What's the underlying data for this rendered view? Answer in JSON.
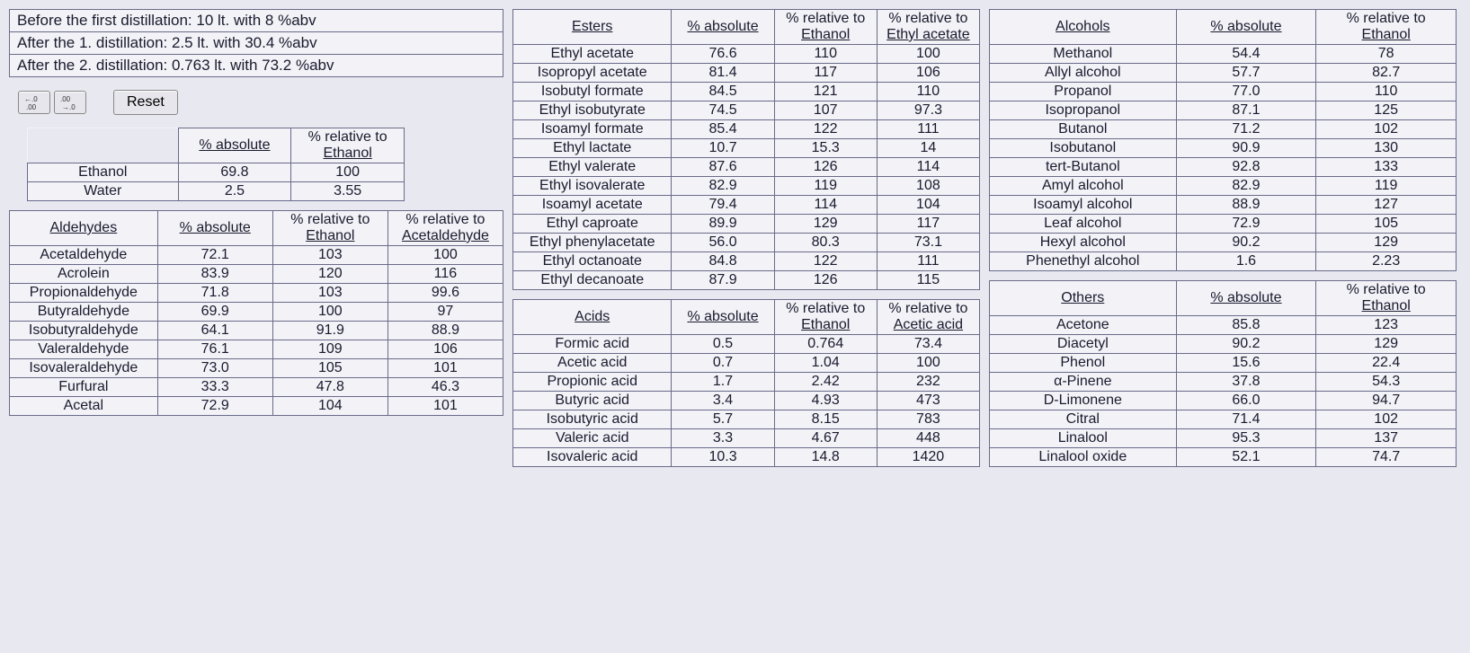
{
  "info": {
    "line1": "Before the first distillation: 10 lt. with 8 %abv",
    "line2": "After the 1. distillation: 2.5 lt. with 30.4 %abv",
    "line3": "After the 2. distillation: 0.763 lt. with 73.2 %abv"
  },
  "toolbar": {
    "reset": "Reset"
  },
  "headers": {
    "absolute": "% absolute",
    "rel_ethanol_l1": "% relative to",
    "rel_ethanol_l2": "Ethanol",
    "rel_acet_l2": "Acetaldehyde",
    "rel_ea_l2": "Ethyl acetate",
    "rel_aa_l2": "Acetic acid",
    "aldehydes": "Aldehydes",
    "esters": "Esters",
    "acids": "Acids",
    "alcohols": "Alcohols",
    "others": "Others"
  },
  "base": {
    "rows": [
      {
        "name": "Ethanol",
        "abs": "69.8",
        "rel": "100"
      },
      {
        "name": "Water",
        "abs": "2.5",
        "rel": "3.55"
      }
    ]
  },
  "aldehydes": {
    "rows": [
      {
        "name": "Acetaldehyde",
        "abs": "72.1",
        "rel1": "103",
        "rel2": "100"
      },
      {
        "name": "Acrolein",
        "abs": "83.9",
        "rel1": "120",
        "rel2": "116"
      },
      {
        "name": "Propionaldehyde",
        "abs": "71.8",
        "rel1": "103",
        "rel2": "99.6"
      },
      {
        "name": "Butyraldehyde",
        "abs": "69.9",
        "rel1": "100",
        "rel2": "97"
      },
      {
        "name": "Isobutyraldehyde",
        "abs": "64.1",
        "rel1": "91.9",
        "rel2": "88.9"
      },
      {
        "name": "Valeraldehyde",
        "abs": "76.1",
        "rel1": "109",
        "rel2": "106"
      },
      {
        "name": "Isovaleraldehyde",
        "abs": "73.0",
        "rel1": "105",
        "rel2": "101"
      },
      {
        "name": "Furfural",
        "abs": "33.3",
        "rel1": "47.8",
        "rel2": "46.3"
      },
      {
        "name": "Acetal",
        "abs": "72.9",
        "rel1": "104",
        "rel2": "101"
      }
    ]
  },
  "esters": {
    "rows": [
      {
        "name": "Ethyl acetate",
        "abs": "76.6",
        "rel1": "110",
        "rel2": "100"
      },
      {
        "name": "Isopropyl acetate",
        "abs": "81.4",
        "rel1": "117",
        "rel2": "106"
      },
      {
        "name": "Isobutyl formate",
        "abs": "84.5",
        "rel1": "121",
        "rel2": "110"
      },
      {
        "name": "Ethyl isobutyrate",
        "abs": "74.5",
        "rel1": "107",
        "rel2": "97.3"
      },
      {
        "name": "Isoamyl formate",
        "abs": "85.4",
        "rel1": "122",
        "rel2": "111"
      },
      {
        "name": "Ethyl lactate",
        "abs": "10.7",
        "rel1": "15.3",
        "rel2": "14"
      },
      {
        "name": "Ethyl valerate",
        "abs": "87.6",
        "rel1": "126",
        "rel2": "114"
      },
      {
        "name": "Ethyl isovalerate",
        "abs": "82.9",
        "rel1": "119",
        "rel2": "108"
      },
      {
        "name": "Isoamyl acetate",
        "abs": "79.4",
        "rel1": "114",
        "rel2": "104"
      },
      {
        "name": "Ethyl caproate",
        "abs": "89.9",
        "rel1": "129",
        "rel2": "117"
      },
      {
        "name": "Ethyl phenylacetate",
        "abs": "56.0",
        "rel1": "80.3",
        "rel2": "73.1"
      },
      {
        "name": "Ethyl octanoate",
        "abs": "84.8",
        "rel1": "122",
        "rel2": "111"
      },
      {
        "name": "Ethyl decanoate",
        "abs": "87.9",
        "rel1": "126",
        "rel2": "115"
      }
    ]
  },
  "acids": {
    "rows": [
      {
        "name": "Formic acid",
        "abs": "0.5",
        "rel1": "0.764",
        "rel2": "73.4"
      },
      {
        "name": "Acetic acid",
        "abs": "0.7",
        "rel1": "1.04",
        "rel2": "100"
      },
      {
        "name": "Propionic acid",
        "abs": "1.7",
        "rel1": "2.42",
        "rel2": "232"
      },
      {
        "name": "Butyric acid",
        "abs": "3.4",
        "rel1": "4.93",
        "rel2": "473"
      },
      {
        "name": "Isobutyric acid",
        "abs": "5.7",
        "rel1": "8.15",
        "rel2": "783"
      },
      {
        "name": "Valeric acid",
        "abs": "3.3",
        "rel1": "4.67",
        "rel2": "448"
      },
      {
        "name": "Isovaleric acid",
        "abs": "10.3",
        "rel1": "14.8",
        "rel2": "1420"
      }
    ]
  },
  "alcohols": {
    "rows": [
      {
        "name": "Methanol",
        "abs": "54.4",
        "rel1": "78"
      },
      {
        "name": "Allyl alcohol",
        "abs": "57.7",
        "rel1": "82.7"
      },
      {
        "name": "Propanol",
        "abs": "77.0",
        "rel1": "110"
      },
      {
        "name": "Isopropanol",
        "abs": "87.1",
        "rel1": "125"
      },
      {
        "name": "Butanol",
        "abs": "71.2",
        "rel1": "102"
      },
      {
        "name": "Isobutanol",
        "abs": "90.9",
        "rel1": "130"
      },
      {
        "name": "tert-Butanol",
        "abs": "92.8",
        "rel1": "133"
      },
      {
        "name": "Amyl alcohol",
        "abs": "82.9",
        "rel1": "119"
      },
      {
        "name": "Isoamyl alcohol",
        "abs": "88.9",
        "rel1": "127"
      },
      {
        "name": "Leaf alcohol",
        "abs": "72.9",
        "rel1": "105"
      },
      {
        "name": "Hexyl alcohol",
        "abs": "90.2",
        "rel1": "129"
      },
      {
        "name": "Phenethyl alcohol",
        "abs": "1.6",
        "rel1": "2.23"
      }
    ]
  },
  "others": {
    "rows": [
      {
        "name": "Acetone",
        "abs": "85.8",
        "rel1": "123"
      },
      {
        "name": "Diacetyl",
        "abs": "90.2",
        "rel1": "129"
      },
      {
        "name": "Phenol",
        "abs": "15.6",
        "rel1": "22.4"
      },
      {
        "name": "α-Pinene",
        "abs": "37.8",
        "rel1": "54.3"
      },
      {
        "name": "D-Limonene",
        "abs": "66.0",
        "rel1": "94.7"
      },
      {
        "name": "Citral",
        "abs": "71.4",
        "rel1": "102"
      },
      {
        "name": "Linalool",
        "abs": "95.3",
        "rel1": "137"
      },
      {
        "name": "Linalool oxide",
        "abs": "52.1",
        "rel1": "74.7"
      }
    ]
  }
}
